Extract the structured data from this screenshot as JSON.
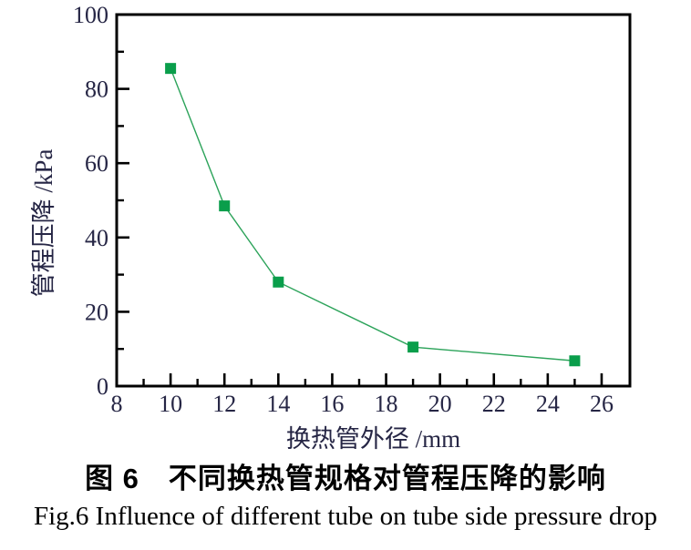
{
  "figure": {
    "caption_line1": "图 6　不同换热管规格对管程压降的影响",
    "caption_line2": "Fig.6 Influence of different tube on tube side pressure drop"
  },
  "chart_data": {
    "type": "line",
    "title": "",
    "xlabel": "换热管外径 /mm",
    "ylabel": "管程压降 /kPa",
    "x": [
      10,
      12,
      14,
      19,
      25
    ],
    "series": [
      {
        "name": "管程压降",
        "values": [
          85.5,
          48.5,
          28,
          10.5,
          6.8
        ]
      }
    ],
    "xlim": [
      8,
      27.05
    ],
    "ylim": [
      0,
      100
    ],
    "x_major_ticks": [
      8,
      10,
      12,
      14,
      16,
      18,
      20,
      22,
      24,
      26
    ],
    "x_minor_ticks": [
      9,
      11,
      13,
      15,
      17,
      19,
      21,
      23,
      25
    ],
    "y_major_ticks": [
      0,
      20,
      40,
      60,
      80,
      100
    ],
    "y_minor_ticks": [
      10,
      30,
      50,
      70,
      90
    ],
    "marker": "square",
    "grid": false,
    "legend": "none",
    "colors": {
      "series": "#0a9e4b",
      "line": "#2ca35a",
      "frame": "#000000",
      "tick_label": "#262645"
    }
  }
}
